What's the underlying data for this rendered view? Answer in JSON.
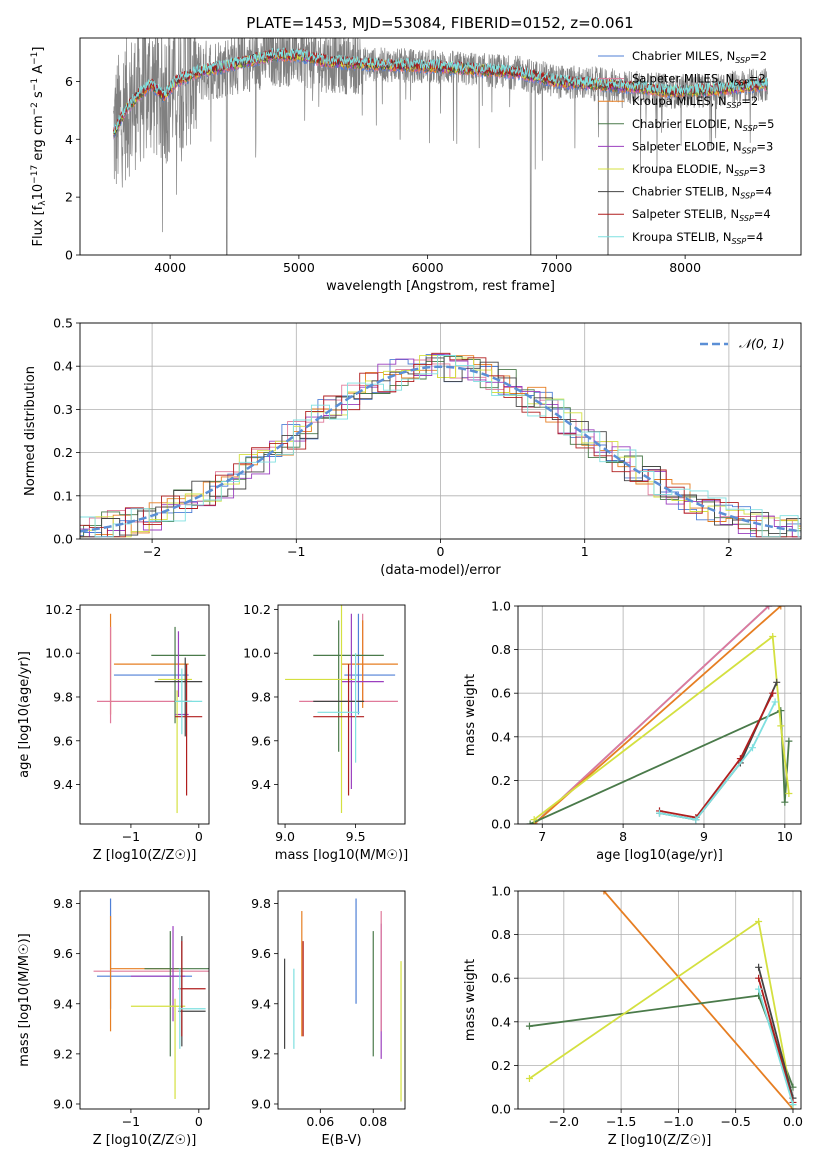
{
  "figure": {
    "title": "PLATE=1453, MJD=53084, FIBERID=0152, z=0.061"
  },
  "series": [
    {
      "name": "Chabrier MILES, N_SSP=2",
      "color": "#4f7fd6"
    },
    {
      "name": "Salpeter MILES, N_SSP=2",
      "color": "#e07a9a"
    },
    {
      "name": "Kroupa MILES, N_SSP=2",
      "color": "#e67e22"
    },
    {
      "name": "Chabrier ELODIE, N_SSP=5",
      "color": "#4a7a4a"
    },
    {
      "name": "Salpeter ELODIE, N_SSP=3",
      "color": "#9b3fbf"
    },
    {
      "name": "Kroupa ELODIE, N_SSP=3",
      "color": "#d4e040"
    },
    {
      "name": "Chabrier STELIB, N_SSP=4",
      "color": "#444444"
    },
    {
      "name": "Salpeter STELIB, N_SSP=4",
      "color": "#b01e1e"
    },
    {
      "name": "Kroupa STELIB, N_SSP=4",
      "color": "#7fe0e0"
    }
  ],
  "chart_data": [
    {
      "id": "spectrum",
      "type": "line",
      "xlabel": "wavelength [Angstrom, rest frame]",
      "ylabel": "Flux [f_λ 10^-17 erg cm^-2 s^-1 A^-1]",
      "xlim": [
        3300,
        8900
      ],
      "ylim": [
        0,
        7.5
      ],
      "xticks": [
        4000,
        5000,
        6000,
        7000,
        8000
      ],
      "yticks": [
        0,
        2,
        4,
        6
      ],
      "grid": false,
      "legend": "right",
      "observed_color": "#808080",
      "data_range": [
        3560,
        8640
      ],
      "model_flux_points": {
        "x": [
          3560,
          3650,
          3750,
          3850,
          3950,
          4050,
          4200,
          4400,
          4600,
          4800,
          5000,
          5200,
          5500,
          5800,
          6100,
          6400,
          6700,
          7000,
          7300,
          7600,
          7900,
          8200,
          8400,
          8640
        ],
        "y": [
          4.2,
          5.0,
          5.5,
          5.9,
          5.5,
          6.0,
          6.3,
          6.5,
          6.7,
          6.9,
          6.9,
          6.7,
          6.6,
          6.55,
          6.5,
          6.4,
          6.3,
          6.0,
          5.9,
          5.8,
          5.65,
          5.7,
          5.8,
          5.9
        ]
      }
    },
    {
      "id": "residual-histogram",
      "type": "line",
      "xlabel": "(data-model)/error",
      "ylabel": "Normed distribution",
      "xlim": [
        -2.5,
        2.5
      ],
      "ylim": [
        0,
        0.5
      ],
      "xticks": [
        -2,
        -1,
        0,
        1,
        2
      ],
      "yticks": [
        0.0,
        0.1,
        0.2,
        0.3,
        0.4,
        0.5
      ],
      "grid": true,
      "legend": "top-right",
      "gaussian_label": "𝒩(0, 1)",
      "gaussian_color": "#5b8fd6",
      "bin_width": 0.125
    },
    {
      "id": "age-vs-Z",
      "type": "scatter",
      "xlabel": "Z [log10(Z/Z☉)]",
      "ylabel": "age  [log10(age/yr)]",
      "xlim": [
        -1.75,
        0.15
      ],
      "ylim": [
        9.22,
        10.22
      ],
      "xticks": [
        -1,
        0
      ],
      "yticks": [
        9.4,
        9.6,
        9.8,
        10.0,
        10.2
      ],
      "points": [
        {
          "s": 0,
          "x": -0.7,
          "xerr": 0.55,
          "y": 9.9,
          "yerr": 0.0
        },
        {
          "s": 1,
          "x": -0.8,
          "xerr": 0.7,
          "y": 9.78,
          "yerr": 0.0
        },
        {
          "s": 2,
          "x": -0.7,
          "xerr": 0.55,
          "y": 9.95,
          "yerr": 0.0
        },
        {
          "s": 2,
          "x": -1.3,
          "xerr": 0.0,
          "y": 9.95,
          "yerr": 0.23
        },
        {
          "s": 3,
          "x": -0.3,
          "xerr": 0.4,
          "y": 9.99,
          "yerr": 0.0
        },
        {
          "s": 3,
          "x": -0.35,
          "xerr": 0.0,
          "y": 9.9,
          "yerr": 0.22
        },
        {
          "s": 4,
          "x": -0.3,
          "xerr": 0.0,
          "y": 9.95,
          "yerr": 0.15
        },
        {
          "s": 4,
          "x": -0.25,
          "xerr": 0.1,
          "y": 9.72,
          "yerr": 0.0
        },
        {
          "s": 5,
          "x": -0.35,
          "xerr": 0.25,
          "y": 9.88,
          "yerr": 0.0
        },
        {
          "s": 5,
          "x": -0.32,
          "xerr": 0.0,
          "y": 9.55,
          "yerr": 0.28
        },
        {
          "s": 6,
          "x": -0.3,
          "xerr": 0.35,
          "y": 9.87,
          "yerr": 0.0
        },
        {
          "s": 6,
          "x": -0.2,
          "xerr": 0.0,
          "y": 9.8,
          "yerr": 0.18
        },
        {
          "s": 7,
          "x": -0.15,
          "xerr": 0.2,
          "y": 9.71,
          "yerr": 0.0
        },
        {
          "s": 7,
          "x": -0.18,
          "xerr": 0.0,
          "y": 9.65,
          "yerr": 0.3
        },
        {
          "s": 8,
          "x": -0.15,
          "xerr": 0.2,
          "y": 9.78,
          "yerr": 0.0
        },
        {
          "s": 8,
          "x": -0.25,
          "xerr": 0.0,
          "y": 9.78,
          "yerr": 0.15
        },
        {
          "s": 1,
          "x": -1.3,
          "xerr": 0.0,
          "y": 9.9,
          "yerr": 0.22
        }
      ]
    },
    {
      "id": "age-vs-mass",
      "type": "scatter",
      "xlabel": "mass [log10(M/M☉)]",
      "ylabel": "",
      "xlim": [
        8.95,
        9.85
      ],
      "ylim": [
        9.22,
        10.22
      ],
      "xticks": [
        9.0,
        9.5
      ],
      "yticks": [
        9.4,
        9.6,
        9.8,
        10.0,
        10.2
      ],
      "points": [
        {
          "s": 0,
          "x": 9.6,
          "xerr": 0.18,
          "y": 9.9,
          "yerr": 0.0
        },
        {
          "s": 0,
          "x": 9.52,
          "xerr": 0.0,
          "y": 9.95,
          "yerr": 0.23
        },
        {
          "s": 1,
          "x": 9.45,
          "xerr": 0.35,
          "y": 9.78,
          "yerr": 0.0
        },
        {
          "s": 1,
          "x": 9.55,
          "xerr": 0.0,
          "y": 9.98,
          "yerr": 0.2
        },
        {
          "s": 2,
          "x": 9.6,
          "xerr": 0.2,
          "y": 9.95,
          "yerr": 0.0
        },
        {
          "s": 2,
          "x": 9.55,
          "xerr": 0.0,
          "y": 9.95,
          "yerr": 0.2
        },
        {
          "s": 3,
          "x": 9.45,
          "xerr": 0.25,
          "y": 9.99,
          "yerr": 0.0
        },
        {
          "s": 3,
          "x": 9.38,
          "xerr": 0.0,
          "y": 9.85,
          "yerr": 0.3
        },
        {
          "s": 4,
          "x": 9.55,
          "xerr": 0.15,
          "y": 9.87,
          "yerr": 0.0
        },
        {
          "s": 4,
          "x": 9.47,
          "xerr": 0.0,
          "y": 9.78,
          "yerr": 0.4
        },
        {
          "s": 5,
          "x": 9.25,
          "xerr": 0.25,
          "y": 9.88,
          "yerr": 0.0
        },
        {
          "s": 5,
          "x": 9.4,
          "xerr": 0.0,
          "y": 9.75,
          "yerr": 0.48
        },
        {
          "s": 6,
          "x": 9.38,
          "xerr": 0.18,
          "y": 9.78,
          "yerr": 0.0
        },
        {
          "s": 7,
          "x": 9.38,
          "xerr": 0.18,
          "y": 9.71,
          "yerr": 0.0
        },
        {
          "s": 7,
          "x": 9.45,
          "xerr": 0.0,
          "y": 9.65,
          "yerr": 0.3
        },
        {
          "s": 8,
          "x": 9.38,
          "xerr": 0.15,
          "y": 9.73,
          "yerr": 0.0
        },
        {
          "s": 8,
          "x": 9.5,
          "xerr": 0.0,
          "y": 9.75,
          "yerr": 0.25
        }
      ]
    },
    {
      "id": "massweight-vs-age",
      "type": "line",
      "xlabel": "age  [log10(age/yr)]",
      "ylabel": "mass weight",
      "xlim": [
        6.7,
        10.2
      ],
      "ylim": [
        0,
        1.0
      ],
      "xticks": [
        7,
        8,
        9,
        10
      ],
      "yticks": [
        0.0,
        0.2,
        0.4,
        0.6,
        0.8,
        1.0
      ],
      "grid": true,
      "lines": [
        {
          "s": 0,
          "x": [
            6.9,
            9.8
          ],
          "y": [
            0.0,
            1.0
          ]
        },
        {
          "s": 1,
          "x": [
            6.9,
            9.8
          ],
          "y": [
            0.0,
            1.0
          ]
        },
        {
          "s": 2,
          "x": [
            6.9,
            9.95
          ],
          "y": [
            0.0,
            1.0
          ]
        },
        {
          "s": 3,
          "x": [
            6.85,
            9.95,
            10.0,
            10.05
          ],
          "y": [
            0.0,
            0.52,
            0.1,
            0.38
          ]
        },
        {
          "s": 5,
          "x": [
            6.9,
            9.85,
            9.95,
            10.05
          ],
          "y": [
            0.02,
            0.86,
            0.45,
            0.14
          ]
        },
        {
          "s": 6,
          "x": [
            8.45,
            8.9,
            9.45,
            9.9
          ],
          "y": [
            0.05,
            0.02,
            0.28,
            0.65
          ]
        },
        {
          "s": 7,
          "x": [
            8.45,
            8.9,
            9.45,
            9.85
          ],
          "y": [
            0.06,
            0.03,
            0.3,
            0.6
          ]
        },
        {
          "s": 8,
          "x": [
            8.45,
            8.9,
            9.6,
            9.88
          ],
          "y": [
            0.05,
            0.02,
            0.35,
            0.56
          ]
        }
      ]
    },
    {
      "id": "mass-vs-Z",
      "type": "scatter",
      "xlabel": "Z [log10(Z/Z☉)]",
      "ylabel": "mass [log10(M/M☉)]",
      "xlim": [
        -1.75,
        0.15
      ],
      "ylim": [
        8.98,
        9.85
      ],
      "xticks": [
        -1,
        0
      ],
      "yticks": [
        9.0,
        9.2,
        9.4,
        9.6,
        9.8
      ],
      "points": [
        {
          "s": 0,
          "x": -0.8,
          "xerr": 0.7,
          "y": 9.51,
          "yerr": 0.0
        },
        {
          "s": 0,
          "x": -1.3,
          "xerr": 0.0,
          "y": 9.6,
          "yerr": 0.22
        },
        {
          "s": 1,
          "x": -0.7,
          "xerr": 0.85,
          "y": 9.53,
          "yerr": 0.0
        },
        {
          "s": 2,
          "x": -0.8,
          "xerr": 0.5,
          "y": 9.54,
          "yerr": 0.0
        },
        {
          "s": 2,
          "x": -1.3,
          "xerr": 0.0,
          "y": 9.52,
          "yerr": 0.23
        },
        {
          "s": 3,
          "x": -0.3,
          "xerr": 0.5,
          "y": 9.54,
          "yerr": 0.0
        },
        {
          "s": 3,
          "x": -0.42,
          "xerr": 0.0,
          "y": 9.44,
          "yerr": 0.25
        },
        {
          "s": 4,
          "x": -0.6,
          "xerr": 0.4,
          "y": 9.51,
          "yerr": 0.0
        },
        {
          "s": 4,
          "x": -0.38,
          "xerr": 0.0,
          "y": 9.52,
          "yerr": 0.19
        },
        {
          "s": 5,
          "x": -0.6,
          "xerr": 0.4,
          "y": 9.39,
          "yerr": 0.0
        },
        {
          "s": 5,
          "x": -0.35,
          "xerr": 0.0,
          "y": 9.22,
          "yerr": 0.2
        },
        {
          "s": 6,
          "x": -0.25,
          "xerr": 0.0,
          "y": 9.45,
          "yerr": 0.22
        },
        {
          "s": 6,
          "x": -0.1,
          "xerr": 0.2,
          "y": 9.37,
          "yerr": 0.0
        },
        {
          "s": 7,
          "x": -0.1,
          "xerr": 0.2,
          "y": 9.46,
          "yerr": 0.0
        },
        {
          "s": 7,
          "x": -0.25,
          "xerr": 0.0,
          "y": 9.46,
          "yerr": 0.19
        },
        {
          "s": 8,
          "x": -0.1,
          "xerr": 0.2,
          "y": 9.38,
          "yerr": 0.0
        },
        {
          "s": 8,
          "x": -0.28,
          "xerr": 0.0,
          "y": 9.38,
          "yerr": 0.16
        }
      ]
    },
    {
      "id": "mass-vs-EBV",
      "type": "scatter",
      "xlabel": "E(B-V)",
      "ylabel": "",
      "xlim": [
        0.044,
        0.092
      ],
      "ylim": [
        8.98,
        9.85
      ],
      "xticks": [
        0.06,
        0.08
      ],
      "yticks": [
        9.0,
        9.2,
        9.4,
        9.6,
        9.8
      ],
      "points": [
        {
          "s": 6,
          "x": 0.0465,
          "y": 9.4,
          "yerr": 0.18
        },
        {
          "s": 8,
          "x": 0.05,
          "y": 9.38,
          "yerr": 0.16
        },
        {
          "s": 2,
          "x": 0.053,
          "y": 9.52,
          "yerr": 0.25
        },
        {
          "s": 7,
          "x": 0.0535,
          "y": 9.46,
          "yerr": 0.19
        },
        {
          "s": 0,
          "x": 0.0735,
          "y": 9.61,
          "yerr": 0.21
        },
        {
          "s": 3,
          "x": 0.08,
          "y": 9.44,
          "yerr": 0.25
        },
        {
          "s": 4,
          "x": 0.083,
          "y": 9.45,
          "yerr": 0.27
        },
        {
          "s": 1,
          "x": 0.083,
          "y": 9.53,
          "yerr": 0.24
        },
        {
          "s": 5,
          "x": 0.0905,
          "y": 9.29,
          "yerr": 0.28
        }
      ]
    },
    {
      "id": "massweight-vs-Z",
      "type": "line",
      "xlabel": "Z [log10(Z/Z☉)]",
      "ylabel": "mass weight",
      "xlim": [
        -2.4,
        0.07
      ],
      "ylim": [
        0,
        1.0
      ],
      "xticks": [
        -2.0,
        -1.5,
        -1.0,
        -0.5,
        0.0
      ],
      "yticks": [
        0.0,
        0.2,
        0.4,
        0.6,
        0.8,
        1.0
      ],
      "grid": true,
      "lines": [
        {
          "s": 2,
          "x": [
            -1.65,
            0.0
          ],
          "y": [
            1.0,
            0.0
          ]
        },
        {
          "s": 3,
          "x": [
            -2.3,
            -0.3,
            0.0
          ],
          "y": [
            0.38,
            0.52,
            0.1
          ]
        },
        {
          "s": 5,
          "x": [
            -2.3,
            -0.3,
            0.0
          ],
          "y": [
            0.14,
            0.86,
            0.02
          ]
        },
        {
          "s": 6,
          "x": [
            -0.3,
            0.0
          ],
          "y": [
            0.65,
            0.05
          ]
        },
        {
          "s": 7,
          "x": [
            -0.3,
            0.0
          ],
          "y": [
            0.6,
            0.03
          ]
        },
        {
          "s": 8,
          "x": [
            -0.3,
            0.0
          ],
          "y": [
            0.55,
            0.02
          ]
        }
      ]
    }
  ]
}
